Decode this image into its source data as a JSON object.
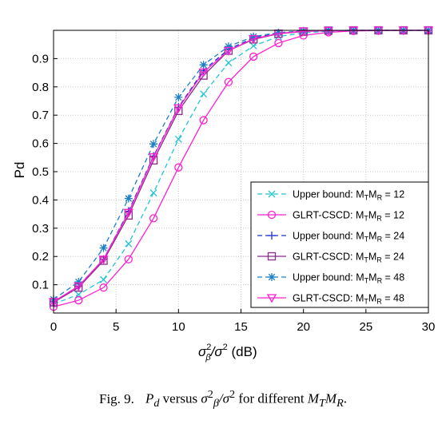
{
  "chart_data": {
    "type": "line",
    "xlabel": "σ²β/σ² (dB)",
    "ylabel": "Pd",
    "xlim": [
      0,
      30
    ],
    "ylim": [
      0,
      1
    ],
    "x_ticks": [
      "0",
      "5",
      "10",
      "15",
      "20",
      "25",
      "30"
    ],
    "y_ticks": [
      "0.1",
      "0.2",
      "0.3",
      "0.4",
      "0.5",
      "0.6",
      "0.7",
      "0.8",
      "0.9"
    ],
    "grid": true,
    "legend_position": "lower-right",
    "x": [
      0,
      2,
      4,
      6,
      8,
      10,
      12,
      14,
      16,
      18,
      20,
      22,
      24,
      26,
      28,
      30
    ],
    "series": [
      {
        "name": "Upper bound: MTMR = 12",
        "color": "#22c4d4",
        "dash": "dashed",
        "marker": "x",
        "values": [
          0.032,
          0.065,
          0.118,
          0.245,
          0.425,
          0.615,
          0.775,
          0.885,
          0.945,
          0.978,
          0.991,
          0.997,
          0.999,
          1.0,
          1.0,
          1.0
        ]
      },
      {
        "name": "GLRT-CSCD: MTMR = 12",
        "color": "#ff1fd2",
        "dash": "solid",
        "marker": "circle",
        "values": [
          0.022,
          0.045,
          0.09,
          0.19,
          0.335,
          0.515,
          0.682,
          0.817,
          0.907,
          0.955,
          0.982,
          0.993,
          0.998,
          0.999,
          1.0,
          1.0
        ]
      },
      {
        "name": "Upper bound: MTMR = 24",
        "color": "#1a2fcf",
        "dash": "dashed",
        "marker": "plus",
        "values": [
          0.04,
          0.095,
          0.19,
          0.36,
          0.555,
          0.728,
          0.858,
          0.933,
          0.973,
          0.99,
          0.997,
          0.999,
          1.0,
          1.0,
          1.0,
          1.0
        ]
      },
      {
        "name": "GLRT-CSCD: MTMR = 24",
        "color": "#8b2a8f",
        "dash": "solid",
        "marker": "square",
        "values": [
          0.038,
          0.09,
          0.185,
          0.345,
          0.54,
          0.715,
          0.84,
          0.928,
          0.968,
          0.988,
          0.996,
          0.999,
          1.0,
          1.0,
          1.0,
          1.0
        ]
      },
      {
        "name": "Upper bound: MTMR = 48",
        "color": "#1b7fc4",
        "dash": "dashed",
        "marker": "asterisk",
        "values": [
          0.048,
          0.11,
          0.23,
          0.405,
          0.598,
          0.763,
          0.878,
          0.943,
          0.978,
          0.992,
          0.998,
          0.999,
          1.0,
          1.0,
          1.0,
          1.0
        ]
      },
      {
        "name": "GLRT-CSCD: MTMR = 48",
        "color": "#ff1fd2",
        "dash": "solid",
        "marker": "triangle-down",
        "values": [
          0.04,
          0.095,
          0.19,
          0.355,
          0.552,
          0.725,
          0.852,
          0.928,
          0.97,
          0.989,
          0.997,
          0.999,
          1.0,
          1.0,
          1.0,
          1.0
        ]
      }
    ]
  },
  "legend": {
    "entries": [
      {
        "prefix": "Upper bound: M",
        "sub1": "T",
        "mid": "M",
        "sub2": "R",
        "suffix": " = 12"
      },
      {
        "prefix": "GLRT-CSCD: M",
        "sub1": "T",
        "mid": "M",
        "sub2": "R",
        "suffix": " = 12"
      },
      {
        "prefix": "Upper bound: M",
        "sub1": "T",
        "mid": "M",
        "sub2": "R",
        "suffix": " = 24"
      },
      {
        "prefix": "GLRT-CSCD: M",
        "sub1": "T",
        "mid": "M",
        "sub2": "R",
        "suffix": " = 24"
      },
      {
        "prefix": "Upper bound: M",
        "sub1": "T",
        "mid": "M",
        "sub2": "R",
        "suffix": " = 48"
      },
      {
        "prefix": "GLRT-CSCD: M",
        "sub1": "T",
        "mid": "M",
        "sub2": "R",
        "suffix": " = 48"
      }
    ]
  },
  "axis_labels": {
    "y": "Pd",
    "x_sigma": "σ",
    "x_sup": "2",
    "x_sub": "β",
    "x_slash": "/σ",
    "x_sup2": "2",
    "x_unit": " (dB)"
  },
  "caption": {
    "label": "Fig. 9.",
    "p": "P",
    "p_sub": "d",
    "versus": " versus ",
    "sigma": "σ",
    "sigma_sup": "2",
    "sigma_sub": "β",
    "slash_sigma": "/σ",
    "slash_sup": "2",
    "for_text": " for different ",
    "m1": "M",
    "m1_sub": "T",
    "m2": "M",
    "m2_sub": "R",
    "end": "."
  }
}
